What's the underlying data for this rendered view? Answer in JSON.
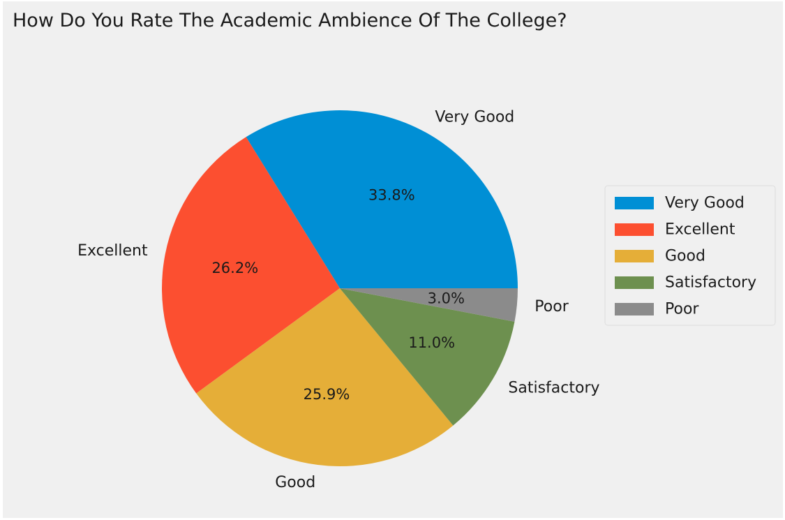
{
  "chart_data": {
    "type": "pie",
    "title": "How Do You Rate The Academic Ambience Of The College?",
    "slices": [
      {
        "label": "Very Good",
        "value": 33.8,
        "pct_label": "33.8%",
        "color": "#008fd5"
      },
      {
        "label": "Excellent",
        "value": 26.2,
        "pct_label": "26.2%",
        "color": "#fc4f30"
      },
      {
        "label": "Good",
        "value": 25.9,
        "pct_label": "25.9%",
        "color": "#e5ae38"
      },
      {
        "label": "Satisfactory",
        "value": 11.0,
        "pct_label": "11.0%",
        "color": "#6d904f"
      },
      {
        "label": "Poor",
        "value": 3.0,
        "pct_label": "3.0%",
        "color": "#8b8b8b"
      }
    ],
    "legend": {
      "placement": "right",
      "entries": [
        "Very Good",
        "Excellent",
        "Good",
        "Satisfactory",
        "Poor"
      ]
    }
  }
}
